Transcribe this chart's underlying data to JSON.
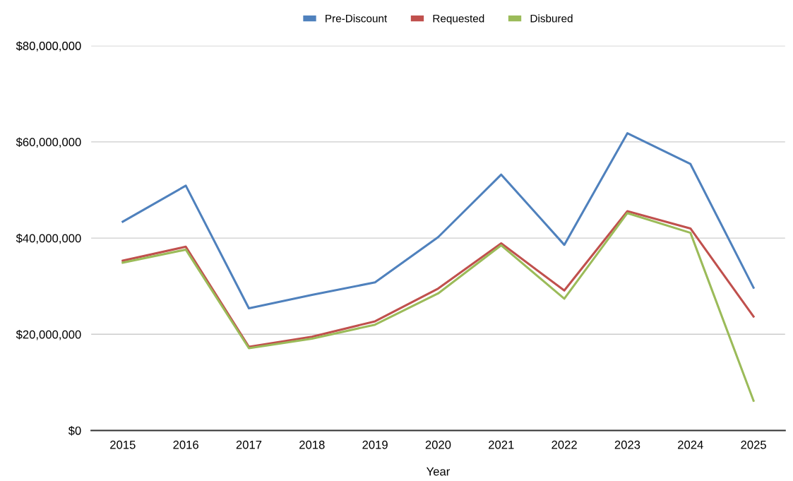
{
  "chart_data": {
    "type": "line",
    "xlabel": "Year",
    "categories": [
      "2015",
      "2016",
      "2017",
      "2018",
      "2019",
      "2020",
      "2021",
      "2022",
      "2023",
      "2024",
      "2025"
    ],
    "series": [
      {
        "name": "Pre-Discount",
        "color": "#4f81bd",
        "values": [
          43400000,
          50900000,
          25400000,
          28200000,
          30800000,
          40200000,
          53200000,
          38600000,
          61800000,
          55400000,
          29700000
        ]
      },
      {
        "name": "Requested",
        "color": "#c0504d",
        "values": [
          35300000,
          38200000,
          17400000,
          19500000,
          22700000,
          29500000,
          38900000,
          29100000,
          45600000,
          42000000,
          23700000
        ]
      },
      {
        "name": "Disbured",
        "color": "#9bbb59",
        "values": [
          34900000,
          37600000,
          17100000,
          19100000,
          22000000,
          28500000,
          38500000,
          27400000,
          45200000,
          41100000,
          6200000
        ]
      }
    ],
    "ylim": [
      0,
      80000000
    ],
    "yticks": [
      {
        "value": 0,
        "label": "$0"
      },
      {
        "value": 20000000,
        "label": "$20,000,000"
      },
      {
        "value": 40000000,
        "label": "$40,000,000"
      },
      {
        "value": 60000000,
        "label": "$60,000,000"
      },
      {
        "value": 80000000,
        "label": "$80,000,000"
      }
    ],
    "grid": "y",
    "legend": "top",
    "marker": "none",
    "line_style": "solid"
  }
}
